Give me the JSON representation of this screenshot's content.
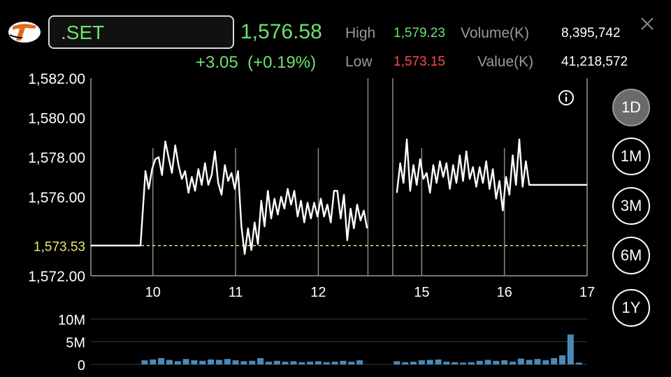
{
  "header": {
    "symbol": ".SET",
    "last_price": "1,576.58",
    "change": "+3.05",
    "change_pct": "(+0.19%)",
    "high_label": "High",
    "high_value": "1,579.23",
    "low_label": "Low",
    "low_value": "1,573.15",
    "volume_label": "Volume(K)",
    "volume_value": "8,395,742",
    "value_label": "Value(K)",
    "value_value": "41,218,572",
    "colors": {
      "up": "#6fe06f",
      "down": "#ff4b4b",
      "prev_close_line": "#e8e87a",
      "volume_bar": "#4b8ab8"
    }
  },
  "timeframes": [
    {
      "label": "1D",
      "active": true
    },
    {
      "label": "1M",
      "active": false
    },
    {
      "label": "3M",
      "active": false
    },
    {
      "label": "6M",
      "active": false
    },
    {
      "label": "1Y",
      "active": false
    }
  ],
  "icons": {
    "logo": "set-logo",
    "info": "info-icon",
    "close": "close-icon"
  },
  "chart_data": {
    "type": "line",
    "y_ticks": [
      "1,572.00",
      "1,576.00",
      "1,578.00",
      "1,580.00",
      "1,582.00"
    ],
    "y_tick_values": [
      1572,
      1576,
      1578,
      1580,
      1582
    ],
    "ylim": [
      1572,
      1582
    ],
    "prev_close": 1573.53,
    "prev_close_label": "1,573.53",
    "x_ticks": [
      "10",
      "11",
      "12",
      "15",
      "16",
      "17"
    ],
    "x_tick_values": [
      0.75,
      1.75,
      2.75,
      4.0,
      5.0,
      6.0
    ],
    "session_breaks": [
      3.35,
      3.65
    ],
    "xlim": [
      0,
      6.0
    ],
    "x": [
      0,
      0.6,
      0.66,
      0.7,
      0.74,
      0.78,
      0.82,
      0.86,
      0.9,
      0.94,
      0.98,
      1.02,
      1.06,
      1.1,
      1.14,
      1.18,
      1.22,
      1.26,
      1.3,
      1.34,
      1.38,
      1.42,
      1.46,
      1.5,
      1.54,
      1.58,
      1.62,
      1.66,
      1.7,
      1.74,
      1.78,
      1.82,
      1.86,
      1.9,
      1.94,
      1.98,
      2.02,
      2.06,
      2.1,
      2.14,
      2.18,
      2.22,
      2.26,
      2.3,
      2.34,
      2.38,
      2.42,
      2.46,
      2.5,
      2.54,
      2.58,
      2.62,
      2.66,
      2.7,
      2.74,
      2.78,
      2.82,
      2.86,
      2.9,
      2.94,
      2.98,
      3.02,
      3.06,
      3.1,
      3.14,
      3.18,
      3.22,
      3.26,
      3.3,
      3.34,
      3.7,
      3.74,
      3.78,
      3.82,
      3.86,
      3.9,
      3.94,
      3.98,
      4.02,
      4.06,
      4.1,
      4.14,
      4.18,
      4.22,
      4.26,
      4.3,
      4.34,
      4.38,
      4.42,
      4.46,
      4.5,
      4.54,
      4.58,
      4.62,
      4.66,
      4.7,
      4.74,
      4.78,
      4.82,
      4.86,
      4.9,
      4.94,
      4.98,
      5.02,
      5.06,
      5.1,
      5.14,
      5.18,
      5.22,
      5.26,
      5.3,
      5.34,
      5.38,
      5.42,
      5.46,
      5.5,
      5.54,
      5.58,
      5.62,
      5.66,
      5.7,
      5.74,
      5.78,
      5.82,
      5.86,
      5.9,
      5.94,
      5.98,
      6.0
    ],
    "y": [
      1573.53,
      1573.53,
      1577.3,
      1576.4,
      1577.4,
      1577.9,
      1578.0,
      1577.1,
      1578.8,
      1578.0,
      1577.2,
      1578.6,
      1577.6,
      1576.9,
      1577.3,
      1576.2,
      1577.0,
      1576.3,
      1577.4,
      1576.6,
      1577.7,
      1576.6,
      1577.1,
      1578.3,
      1576.7,
      1576.1,
      1577.6,
      1576.8,
      1577.2,
      1576.4,
      1577.3,
      1574.5,
      1573.1,
      1574.4,
      1573.3,
      1574.7,
      1573.6,
      1575.8,
      1574.5,
      1576.3,
      1574.9,
      1575.9,
      1575.1,
      1576.0,
      1575.4,
      1576.4,
      1575.6,
      1576.3,
      1575.0,
      1575.8,
      1574.7,
      1575.7,
      1574.9,
      1575.7,
      1575.0,
      1575.9,
      1575.0,
      1575.6,
      1574.7,
      1576.3,
      1576.3,
      1574.9,
      1576.1,
      1573.8,
      1575.4,
      1574.4,
      1575.6,
      1574.8,
      1575.3,
      1574.4,
      1576.2,
      1577.7,
      1576.7,
      1578.9,
      1576.3,
      1577.6,
      1576.6,
      1577.9,
      1576.9,
      1577.2,
      1576.2,
      1577.6,
      1576.7,
      1577.8,
      1577.0,
      1577.7,
      1576.4,
      1577.6,
      1576.7,
      1578.1,
      1576.8,
      1578.3,
      1576.9,
      1577.5,
      1576.5,
      1577.5,
      1576.7,
      1577.8,
      1576.4,
      1577.4,
      1575.9,
      1576.8,
      1575.3,
      1577.0,
      1576.1,
      1578.1,
      1576.6,
      1578.9,
      1576.5,
      1577.8,
      1576.6,
      1576.6,
      1576.6,
      1576.6,
      1576.6,
      1576.6,
      1576.6,
      1576.6,
      1576.6,
      1576.6,
      1576.6,
      1576.6,
      1576.6,
      1576.6,
      1576.6,
      1576.6,
      1576.6,
      1576.6,
      1576.6
    ],
    "volume": {
      "y_ticks": [
        "0",
        "5M",
        "10M"
      ],
      "y_tick_values": [
        0,
        5,
        10
      ],
      "ylim": [
        0,
        10
      ],
      "x": [
        0.65,
        0.75,
        0.85,
        0.95,
        1.05,
        1.15,
        1.25,
        1.35,
        1.45,
        1.55,
        1.65,
        1.75,
        1.85,
        1.95,
        2.05,
        2.15,
        2.25,
        2.35,
        2.45,
        2.55,
        2.65,
        2.75,
        2.85,
        2.95,
        3.05,
        3.15,
        3.25,
        3.7,
        3.8,
        3.9,
        4.0,
        4.1,
        4.2,
        4.3,
        4.4,
        4.5,
        4.6,
        4.7,
        4.8,
        4.9,
        5.0,
        5.1,
        5.2,
        5.3,
        5.4,
        5.5,
        5.6,
        5.7,
        5.8,
        5.9
      ],
      "values": [
        0.9,
        1.1,
        1.4,
        1.0,
        0.7,
        1.2,
        0.9,
        0.8,
        1.1,
        1.0,
        1.2,
        0.9,
        0.7,
        0.8,
        1.4,
        0.6,
        0.8,
        0.6,
        0.7,
        0.5,
        0.6,
        0.7,
        0.5,
        0.6,
        0.8,
        0.6,
        0.9,
        0.7,
        0.5,
        0.6,
        0.9,
        1.0,
        1.1,
        0.6,
        0.5,
        0.4,
        0.5,
        0.8,
        1.0,
        0.8,
        0.9,
        0.6,
        1.3,
        1.0,
        1.2,
        0.9,
        1.4,
        2.0,
        6.6,
        0.4
      ]
    }
  }
}
